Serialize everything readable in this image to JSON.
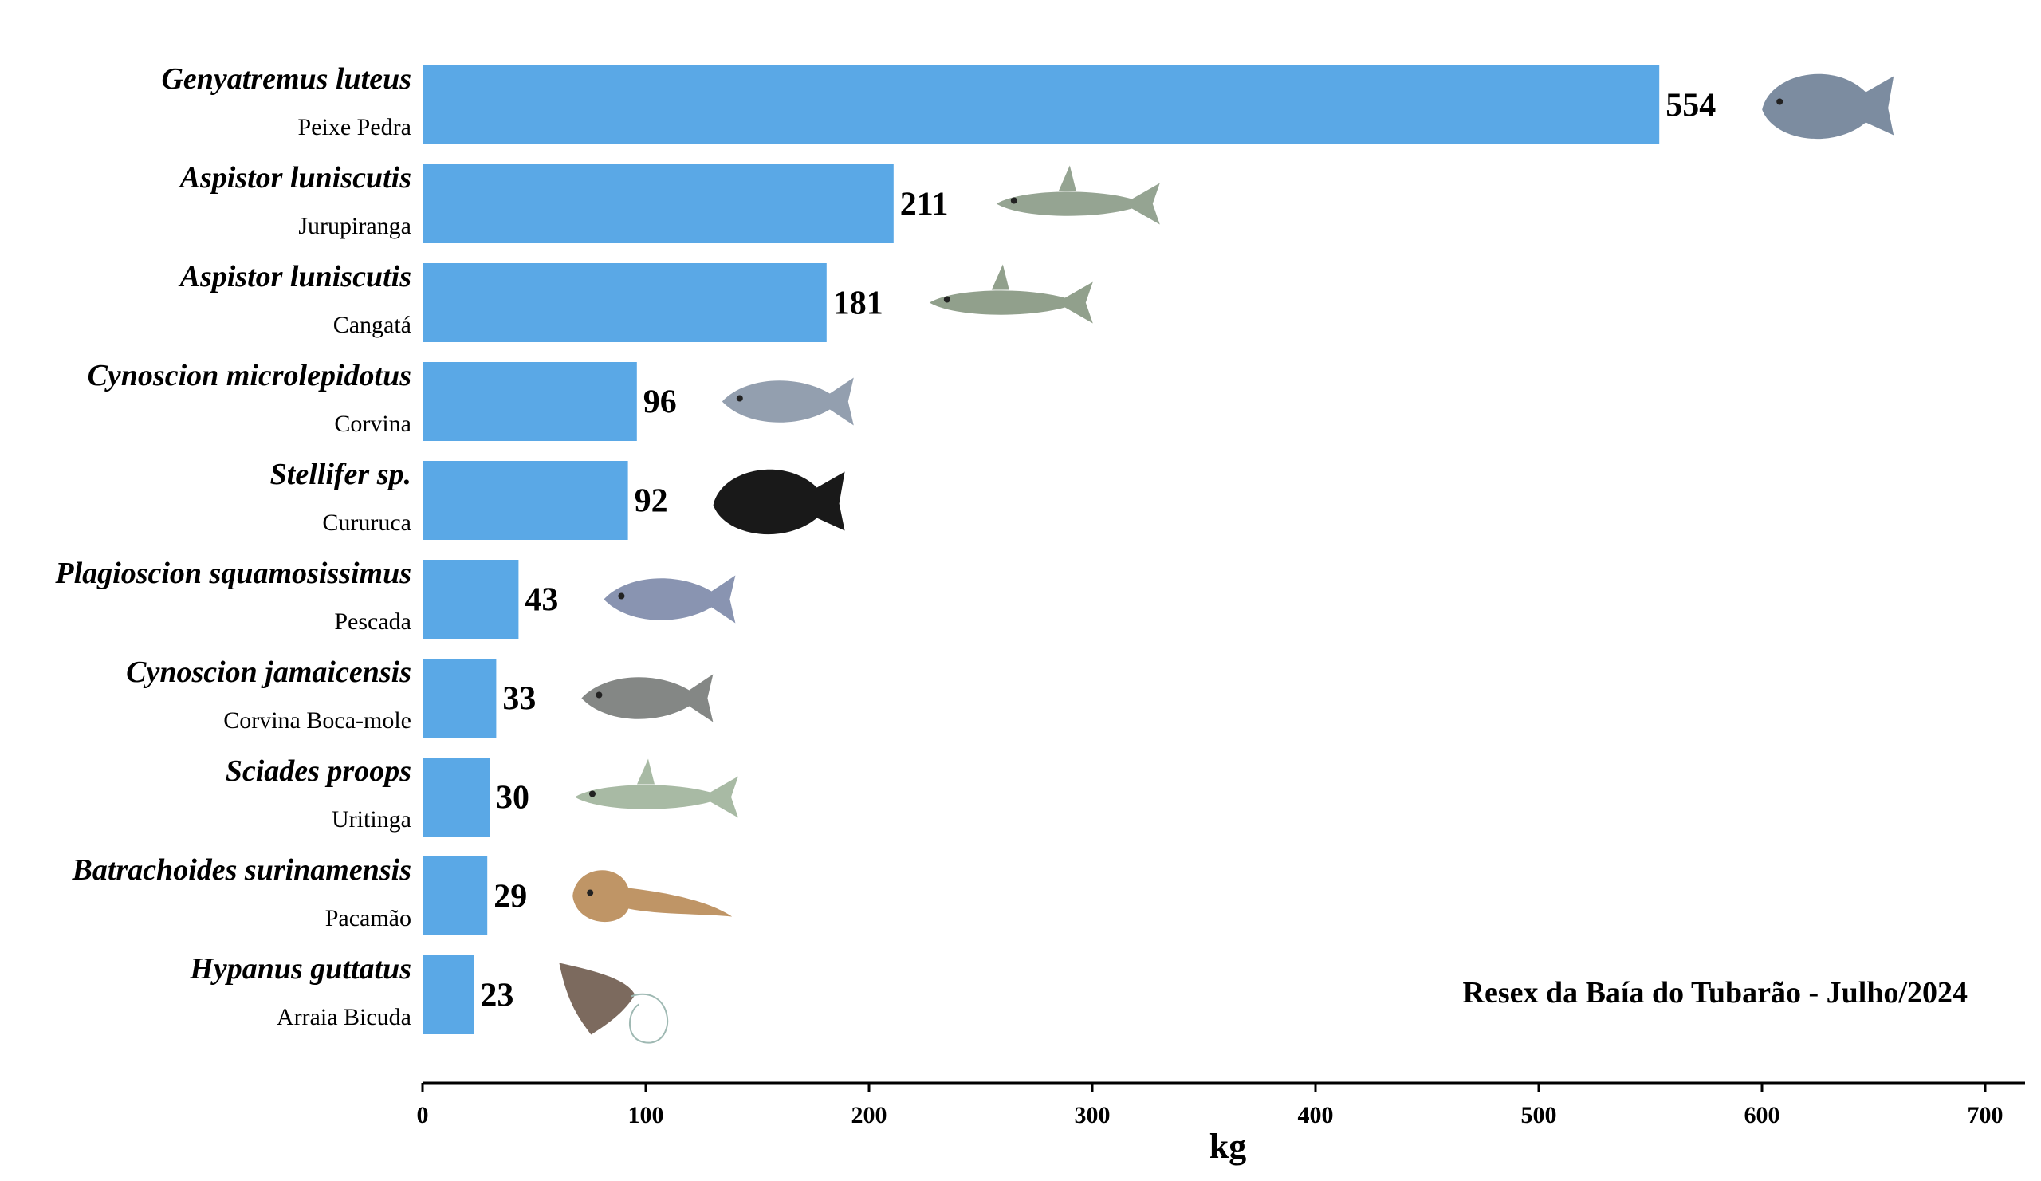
{
  "chart_data": {
    "type": "bar",
    "orientation": "horizontal",
    "xlabel": "kg",
    "xlim": [
      0,
      700
    ],
    "xticks": [
      0,
      100,
      200,
      300,
      400,
      500,
      600,
      700
    ],
    "grid": false,
    "annotation": "Resex da Baía do Tubarão - Julho/2024",
    "bar_color": "#5aa8e6",
    "categories": [
      {
        "species": "Genyatremus luteus",
        "common": "Peixe Pedra",
        "value": 554,
        "icon": "fish-peixe-pedra-icon",
        "fish_color": "#6e7f96"
      },
      {
        "species": "Aspistor luniscutis",
        "common": "Jurupiranga",
        "value": 211,
        "icon": "fish-jurupiranga-icon",
        "fish_color": "#8a9a86"
      },
      {
        "species": "Aspistor luniscutis",
        "common": "Cangatá",
        "value": 181,
        "icon": "fish-cangata-icon",
        "fish_color": "#859680"
      },
      {
        "species": "Cynoscion microlepidotus",
        "common": "Corvina",
        "value": 96,
        "icon": "fish-corvina-icon",
        "fish_color": "#8795a6"
      },
      {
        "species": "Stellifer sp.",
        "common": "Cururuca",
        "value": 92,
        "icon": "fish-cururuca-silhouette-icon",
        "fish_color": "#000000"
      },
      {
        "species": "Plagioscion squamosissimus",
        "common": "Pescada",
        "value": 43,
        "icon": "fish-pescada-icon",
        "fish_color": "#7c88a8"
      },
      {
        "species": "Cynoscion jamaicensis",
        "common": "Corvina Boca-mole",
        "value": 33,
        "icon": "fish-corvina-boca-mole-icon",
        "fish_color": "#777a78"
      },
      {
        "species": "Sciades proops",
        "common": "Uritinga",
        "value": 30,
        "icon": "fish-uritinga-icon",
        "fish_color": "#9fb39a"
      },
      {
        "species": "Batrachoides surinamensis",
        "common": "Pacamão",
        "value": 29,
        "icon": "fish-pacamao-icon",
        "fish_color": "#b88a55"
      },
      {
        "species": "Hypanus guttatus",
        "common": "Arraia Bicuda",
        "value": 23,
        "icon": "stingray-arraia-bicuda-icon",
        "fish_color": "#6e5a4c"
      }
    ]
  }
}
